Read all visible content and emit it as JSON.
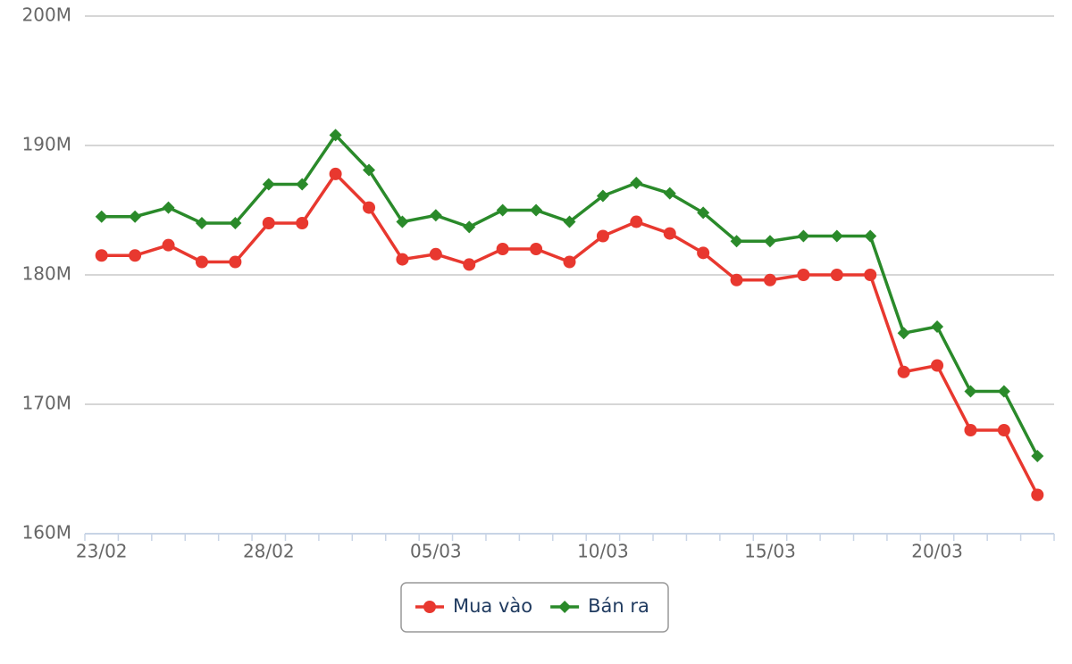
{
  "chart_data": {
    "type": "line",
    "categories": [
      "23/02",
      null,
      null,
      null,
      null,
      "28/02",
      null,
      null,
      null,
      null,
      "05/03",
      null,
      null,
      null,
      null,
      "10/03",
      null,
      null,
      null,
      null,
      "15/03",
      null,
      null,
      null,
      null,
      "20/03",
      null,
      null,
      null
    ],
    "series": [
      {
        "name": "Mua vào",
        "color": "#e8382f",
        "marker": "circle",
        "values": [
          181.5,
          181.5,
          182.3,
          181.0,
          181.0,
          184.0,
          184.0,
          187.8,
          185.2,
          181.2,
          181.6,
          180.8,
          182.0,
          182.0,
          181.0,
          183.0,
          184.1,
          183.2,
          181.7,
          179.6,
          179.6,
          180.0,
          180.0,
          180.0,
          172.5,
          173.0,
          168.0,
          168.0,
          163.0
        ]
      },
      {
        "name": "Bán ra",
        "color": "#2a8a2a",
        "marker": "diamond",
        "values": [
          184.5,
          184.5,
          185.2,
          184.0,
          184.0,
          187.0,
          187.0,
          190.8,
          188.1,
          184.1,
          184.6,
          183.7,
          185.0,
          185.0,
          184.1,
          186.1,
          187.1,
          186.3,
          184.8,
          182.6,
          182.6,
          183.0,
          183.0,
          183.0,
          175.5,
          176.0,
          171.0,
          171.0,
          166.0
        ]
      }
    ],
    "ylim": [
      160,
      200
    ],
    "yticks": [
      {
        "value": 160,
        "label": "160M"
      },
      {
        "value": 170,
        "label": "170M"
      },
      {
        "value": 180,
        "label": "180M"
      },
      {
        "value": 190,
        "label": "190M"
      },
      {
        "value": 200,
        "label": "200M"
      }
    ],
    "grid": true,
    "legend": "bottom"
  }
}
